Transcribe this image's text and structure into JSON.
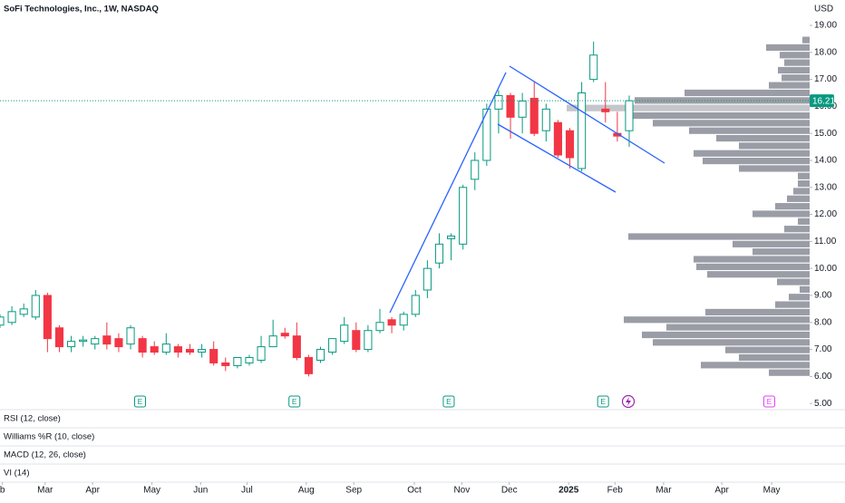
{
  "chart_data": {
    "type": "candlestick",
    "title": "SoFi Technologies, Inc., 1W, NASDAQ",
    "currency": "USD",
    "up_color": "#089981",
    "down_color": "#f23645",
    "open": [
      7.9,
      8.0,
      8.3,
      8.2,
      9.0,
      7.8,
      7.1,
      7.3,
      7.2,
      7.5,
      7.4,
      7.2,
      7.4,
      7.1,
      6.9,
      7.1,
      7.0,
      6.9,
      7.0,
      6.5,
      6.4,
      6.5,
      6.6,
      7.1,
      7.6,
      7.5,
      6.7,
      6.6,
      6.9,
      7.3,
      7.7,
      7.0,
      7.7,
      8.1,
      7.9,
      8.3,
      9.2,
      10.2,
      11.1,
      10.9,
      13.3,
      14.0,
      15.9,
      16.4,
      15.6,
      16.3,
      15.1,
      15.4,
      15.1,
      13.7,
      17.0,
      15.9,
      15.0,
      15.1
    ],
    "high": [
      8.3,
      8.6,
      8.7,
      9.2,
      9.1,
      7.9,
      7.5,
      7.5,
      7.5,
      8.0,
      7.6,
      7.9,
      7.5,
      7.3,
      7.6,
      7.2,
      7.2,
      7.2,
      7.3,
      6.7,
      6.7,
      6.8,
      7.5,
      8.1,
      7.8,
      8.0,
      6.8,
      7.1,
      7.4,
      8.2,
      8.0,
      7.9,
      8.5,
      8.2,
      8.4,
      9.2,
      10.3,
      11.3,
      11.3,
      13.1,
      14.3,
      16.1,
      16.6,
      16.5,
      16.5,
      16.9,
      16.1,
      15.5,
      15.2,
      16.9,
      18.4,
      16.9,
      15.8,
      16.4
    ],
    "low": [
      7.8,
      7.9,
      8.2,
      8.1,
      6.9,
      6.9,
      6.9,
      7.1,
      7.0,
      7.0,
      6.9,
      7.0,
      6.7,
      6.8,
      6.8,
      6.7,
      6.8,
      6.7,
      6.4,
      6.2,
      6.3,
      6.4,
      6.5,
      7.1,
      7.4,
      6.6,
      6.0,
      6.5,
      6.8,
      7.2,
      6.9,
      6.9,
      7.6,
      7.6,
      7.7,
      8.2,
      8.9,
      10.0,
      10.3,
      10.7,
      12.9,
      13.8,
      15.0,
      14.8,
      15.0,
      14.9,
      14.7,
      14.1,
      13.7,
      13.6,
      16.9,
      15.4,
      14.7,
      14.5
    ],
    "close": [
      8.2,
      8.4,
      8.5,
      9.0,
      7.4,
      7.1,
      7.3,
      7.35,
      7.4,
      7.2,
      7.1,
      7.8,
      6.9,
      6.9,
      7.2,
      6.9,
      6.9,
      7.0,
      6.5,
      6.4,
      6.7,
      6.7,
      7.1,
      7.5,
      7.5,
      6.7,
      6.1,
      7.0,
      7.4,
      7.9,
      7.0,
      7.7,
      8.0,
      7.9,
      8.3,
      9.0,
      10.0,
      10.9,
      11.2,
      13.0,
      14.0,
      15.9,
      16.4,
      15.6,
      16.2,
      15.0,
      15.9,
      14.2,
      14.1,
      16.5,
      17.9,
      15.8,
      14.9,
      16.21
    ],
    "xlim": [
      0,
      68.2
    ],
    "xticks": [
      {
        "value": 0.2,
        "label": "b"
      },
      {
        "value": 3.8,
        "label": "Mar"
      },
      {
        "value": 7.8,
        "label": "Apr"
      },
      {
        "value": 12.8,
        "label": "May"
      },
      {
        "value": 16.9,
        "label": "Jun"
      },
      {
        "value": 20.8,
        "label": "Jul"
      },
      {
        "value": 25.8,
        "label": "Aug"
      },
      {
        "value": 29.8,
        "label": "Sep"
      },
      {
        "value": 34.9,
        "label": "Oct"
      },
      {
        "value": 38.9,
        "label": "Nov"
      },
      {
        "value": 42.9,
        "label": "Dec"
      },
      {
        "value": 47.9,
        "label": "2025"
      },
      {
        "value": 51.8,
        "label": "Feb"
      },
      {
        "value": 55.9,
        "label": "Mar"
      },
      {
        "value": 60.8,
        "label": "Apr"
      },
      {
        "value": 65.0,
        "label": "May"
      }
    ],
    "ylim": [
      4.77,
      19.94
    ],
    "yticks": [
      {
        "value": 5,
        "label": "5.00"
      },
      {
        "value": 6,
        "label": "6.00"
      },
      {
        "value": 7,
        "label": "7.00"
      },
      {
        "value": 8,
        "label": "8.00"
      },
      {
        "value": 9,
        "label": "9.00"
      },
      {
        "value": 10,
        "label": "10.00"
      },
      {
        "value": 11,
        "label": "11.00"
      },
      {
        "value": 12,
        "label": "12.00"
      },
      {
        "value": 13,
        "label": "13.00"
      },
      {
        "value": 14,
        "label": "14.00"
      },
      {
        "value": 15,
        "label": "15.00"
      },
      {
        "value": 16,
        "label": "16.00"
      },
      {
        "value": 17,
        "label": "17.00"
      },
      {
        "value": 18,
        "label": "18.00"
      },
      {
        "value": 19,
        "label": "19.00"
      }
    ],
    "volume_profile": {
      "color": "#9598a1",
      "prices": [
        18.46,
        18.18,
        17.9,
        17.62,
        17.34,
        17.06,
        16.78,
        16.5,
        16.22,
        15.94,
        15.66,
        15.38,
        15.1,
        14.82,
        14.54,
        14.26,
        13.98,
        13.7,
        13.42,
        13.14,
        12.86,
        12.58,
        12.3,
        12.02,
        11.74,
        11.46,
        11.18,
        10.9,
        10.62,
        10.34,
        10.06,
        9.78,
        9.5,
        9.22,
        8.94,
        8.66,
        8.38,
        8.1,
        7.82,
        7.54,
        7.26,
        6.98,
        6.7,
        6.42,
        6.14
      ],
      "values": [
        8,
        48,
        33,
        28,
        35,
        31,
        45,
        138,
        193,
        268,
        195,
        173,
        133,
        103,
        78,
        128,
        118,
        78,
        13,
        13,
        18,
        25,
        38,
        63,
        13,
        28,
        200,
        85,
        63,
        128,
        125,
        113,
        36,
        11,
        23,
        38,
        115,
        205,
        158,
        185,
        173,
        93,
        78,
        120,
        45
      ]
    },
    "events": [
      {
        "x": 11.8,
        "label": "E",
        "color": "#089981"
      },
      {
        "x": 24.8,
        "label": "E",
        "color": "#089981"
      },
      {
        "x": 37.8,
        "label": "E",
        "color": "#089981"
      },
      {
        "x": 50.8,
        "label": "E",
        "color": "#089981"
      },
      {
        "x": 64.8,
        "label": "E",
        "color": "#e040fb"
      }
    ],
    "panes": [
      "RSI (12, close)",
      "Williams %R (10, close)",
      "MACD (12, 26, close)",
      "VI (14)"
    ]
  }
}
